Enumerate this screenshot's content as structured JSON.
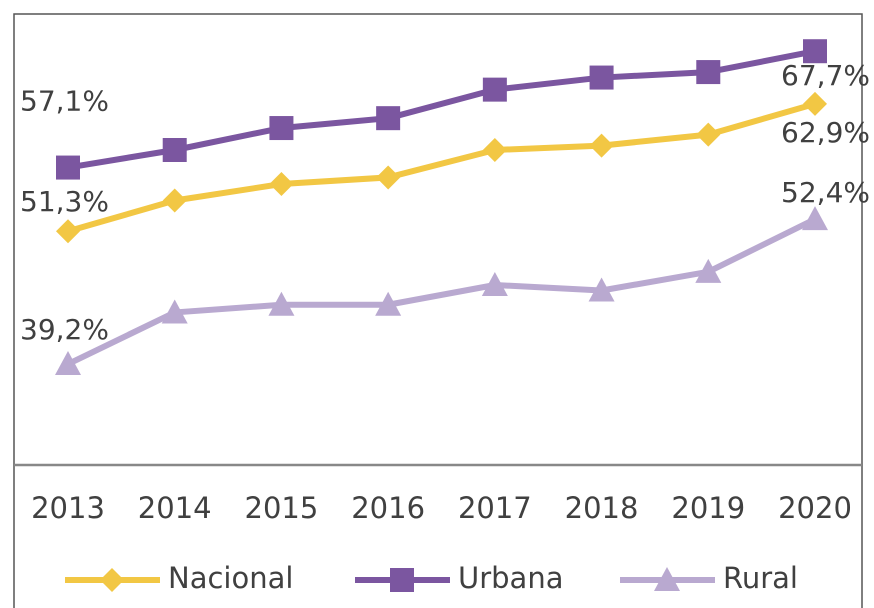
{
  "chart_data": {
    "type": "line",
    "categories": [
      "2013",
      "2014",
      "2015",
      "2016",
      "2017",
      "2018",
      "2019",
      "2020"
    ],
    "series": [
      {
        "name": "Nacional",
        "color": "#f2c744",
        "marker": "diamond",
        "values": [
          51.3,
          54.1,
          55.6,
          56.2,
          58.7,
          59.1,
          60.1,
          62.9
        ],
        "value_labels": [
          "51,3%",
          null,
          null,
          null,
          null,
          null,
          null,
          "62,9%"
        ]
      },
      {
        "name": "Urbana",
        "color": "#7b56a0",
        "marker": "square",
        "values": [
          57.1,
          58.7,
          60.7,
          61.6,
          64.2,
          65.3,
          65.8,
          67.7
        ],
        "value_labels": [
          "57,1%",
          null,
          null,
          null,
          null,
          null,
          null,
          "67,7%"
        ]
      },
      {
        "name": "Rural",
        "color": "#b9a9d0",
        "marker": "triangle",
        "values": [
          39.2,
          43.9,
          44.6,
          44.6,
          46.4,
          45.9,
          47.6,
          52.4
        ],
        "value_labels": [
          "39,2%",
          null,
          null,
          null,
          null,
          null,
          null,
          "52,4%"
        ]
      }
    ],
    "ylim": [
      30,
      71
    ],
    "grid": false,
    "legend": "bottom"
  }
}
